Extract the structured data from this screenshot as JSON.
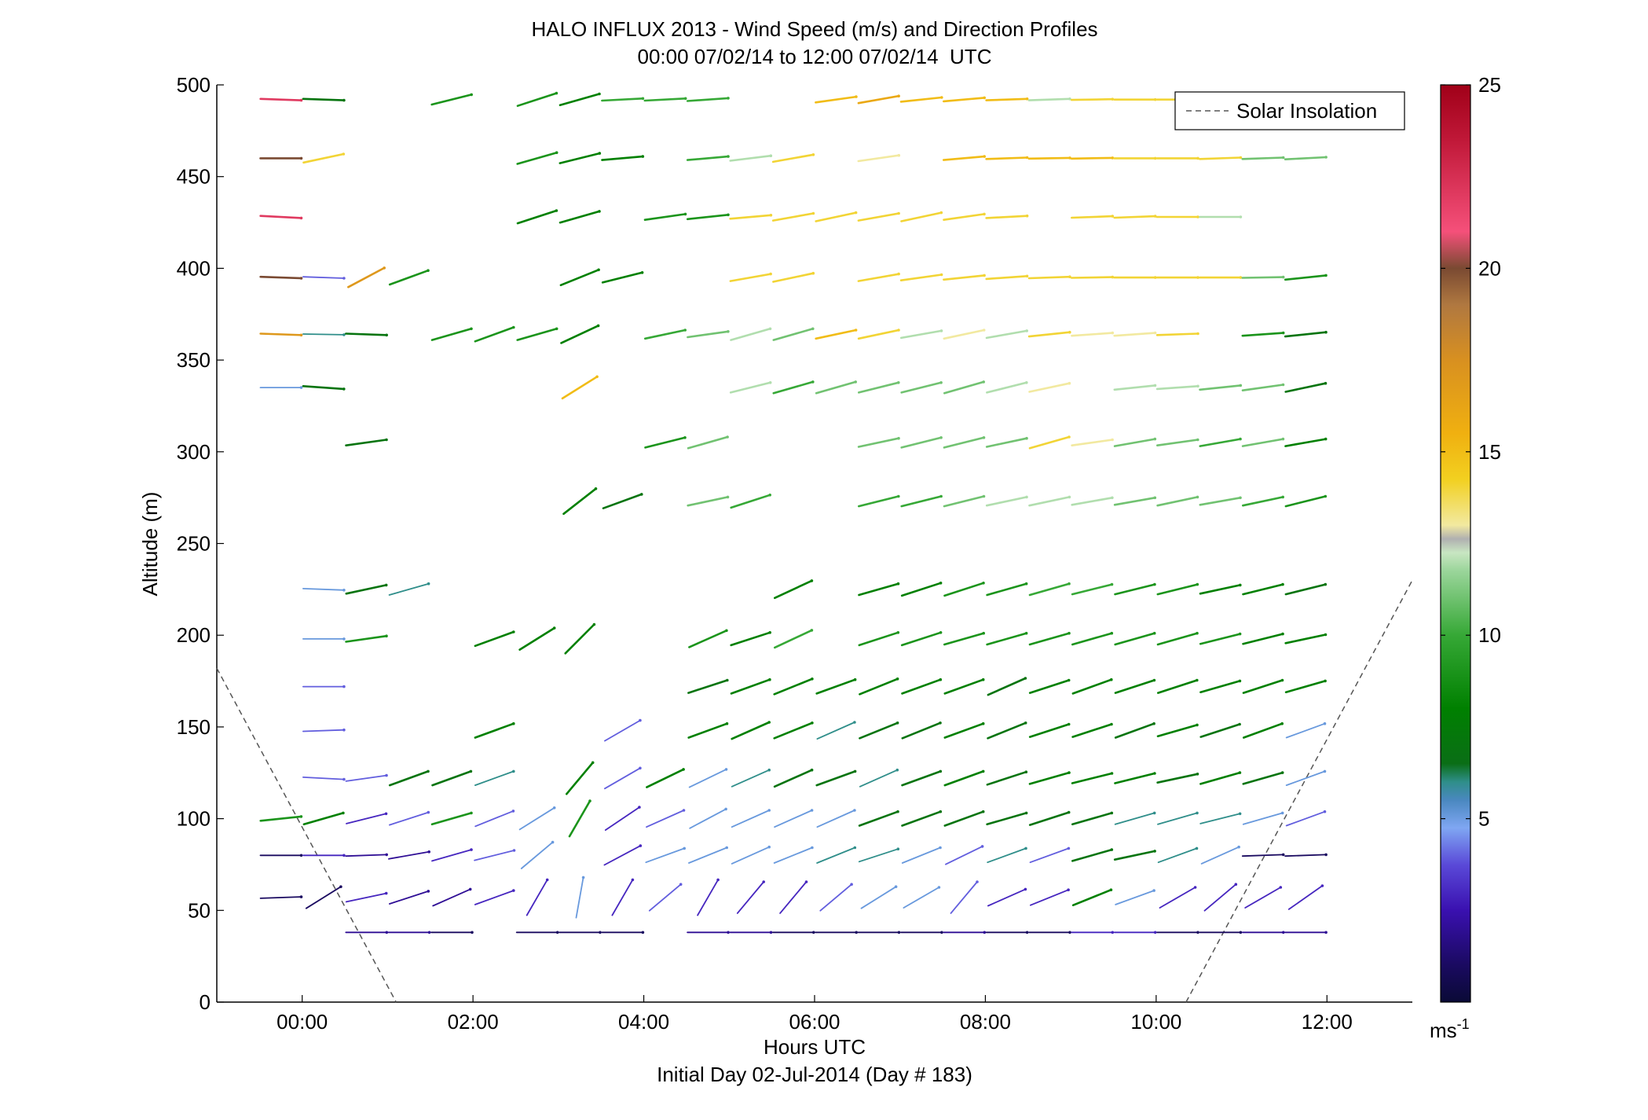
{
  "chart_data": {
    "type": "quiver",
    "title": "HALO INFLUX 2013 - Wind Speed (m/s) and Direction Profiles",
    "subtitle": "00:00 07/02/14 to 12:00 07/02/14  UTC",
    "xlabel": "Hours UTC",
    "xlabel2": "Initial Day 02-Jul-2014 (Day # 183)",
    "ylabel": "Altitude (m)",
    "xlim": [
      -1,
      13
    ],
    "ylim": [
      0,
      500
    ],
    "xticks": [
      0,
      2,
      4,
      6,
      8,
      10,
      12
    ],
    "xtick_labels": [
      "00:00",
      "02:00",
      "04:00",
      "06:00",
      "08:00",
      "10:00",
      "12:00"
    ],
    "yticks": [
      0,
      50,
      100,
      150,
      200,
      250,
      300,
      350,
      400,
      450,
      500
    ],
    "ytick_labels": [
      "0",
      "50",
      "100",
      "150",
      "200",
      "250",
      "300",
      "350",
      "400",
      "450",
      "500"
    ],
    "legend": {
      "label": "Solar Insolation",
      "placement": "top-right"
    },
    "solar_insolation": [
      {
        "x": [
          -1.0,
          1.1
        ],
        "y": [
          182,
          0
        ]
      },
      {
        "x": [
          10.35,
          13.0
        ],
        "y": [
          0,
          230
        ]
      }
    ],
    "colorbar": {
      "ticks": [
        5,
        10,
        15,
        20,
        25
      ],
      "tick_labels": [
        "5",
        "10",
        "15",
        "20",
        "25"
      ],
      "range": [
        0,
        25
      ],
      "unit_label": "ms",
      "unit_exp": "-1"
    },
    "profile_times": [
      -0.25,
      0.25,
      0.75,
      1.25,
      1.75,
      2.25,
      2.75,
      3.25,
      3.75,
      4.25,
      4.75,
      5.25,
      5.75,
      6.25,
      6.75,
      7.25,
      7.75,
      8.25,
      8.75,
      9.25,
      9.75,
      10.25,
      10.75,
      11.25,
      11.75
    ],
    "wind_barbs": [
      {
        "alt": 492,
        "speed": [
          22,
          7,
          0,
          0,
          9,
          0,
          9,
          8,
          10,
          10,
          10,
          0,
          0,
          15,
          16,
          15,
          15,
          15,
          12,
          14,
          14,
          14,
          14,
          15,
          0
        ],
        "dir": [
          -2,
          -2,
          0,
          0,
          14,
          0,
          18,
          16,
          3,
          3,
          4,
          0,
          0,
          8,
          10,
          6,
          5,
          2,
          2,
          1,
          0,
          0,
          0,
          0,
          0
        ]
      },
      {
        "alt": 460,
        "speed": [
          20,
          14,
          0,
          0,
          0,
          0,
          9,
          8,
          8,
          0,
          10,
          12,
          14,
          0,
          13,
          0,
          15,
          15,
          15,
          15,
          14,
          14,
          14,
          11,
          11
        ],
        "dir": [
          0,
          12,
          0,
          0,
          0,
          0,
          16,
          14,
          5,
          0,
          5,
          7,
          10,
          0,
          8,
          0,
          5,
          2,
          1,
          1,
          0,
          0,
          2,
          2,
          3
        ]
      },
      {
        "alt": 428,
        "speed": [
          22,
          0,
          0,
          0,
          0,
          0,
          8,
          8,
          0,
          9,
          9,
          14,
          14,
          14,
          14,
          14,
          14,
          14,
          0,
          14,
          14,
          14,
          12,
          0,
          0
        ],
        "dir": [
          -3,
          0,
          0,
          0,
          0,
          0,
          18,
          16,
          0,
          8,
          6,
          5,
          10,
          12,
          10,
          12,
          8,
          3,
          0,
          2,
          2,
          0,
          0,
          0,
          0
        ]
      },
      {
        "alt": 395,
        "speed": [
          20,
          4,
          17,
          9,
          0,
          0,
          0,
          8,
          8,
          0,
          0,
          14,
          14,
          0,
          14,
          14,
          14,
          14,
          14,
          14,
          14,
          14,
          14,
          11,
          9
        ],
        "dir": [
          -2,
          -2,
          28,
          20,
          0,
          0,
          0,
          22,
          14,
          0,
          0,
          10,
          12,
          0,
          10,
          8,
          6,
          4,
          2,
          1,
          0,
          0,
          0,
          1,
          6
        ]
      },
      {
        "alt": 364,
        "speed": [
          17,
          6,
          7,
          0,
          9,
          9,
          9,
          8,
          0,
          10,
          11,
          12,
          11,
          15,
          14,
          12,
          13,
          12,
          14,
          13,
          13,
          14,
          0,
          9,
          7
        ],
        "dir": [
          -2,
          -1,
          -2,
          0,
          16,
          20,
          16,
          25,
          0,
          12,
          8,
          16,
          16,
          12,
          12,
          10,
          12,
          10,
          6,
          4,
          4,
          2,
          0,
          4,
          6
        ]
      },
      {
        "alt": 335,
        "speed": [
          5,
          7,
          0,
          0,
          0,
          0,
          0,
          15,
          0,
          0,
          0,
          12,
          10,
          11,
          11,
          11,
          11,
          12,
          13,
          0,
          12,
          12,
          11,
          11,
          7
        ],
        "dir": [
          0,
          -4,
          0,
          0,
          0,
          0,
          0,
          32,
          0,
          0,
          0,
          14,
          16,
          16,
          14,
          14,
          16,
          14,
          12,
          0,
          6,
          4,
          6,
          8,
          12
        ]
      },
      {
        "alt": 305,
        "speed": [
          0,
          0,
          7,
          0,
          0,
          0,
          0,
          0,
          0,
          9,
          11,
          0,
          0,
          0,
          11,
          11,
          11,
          11,
          14,
          13,
          11,
          11,
          10,
          11,
          8
        ],
        "dir": [
          0,
          0,
          8,
          0,
          0,
          0,
          0,
          0,
          0,
          14,
          16,
          0,
          0,
          0,
          12,
          14,
          14,
          12,
          16,
          8,
          10,
          8,
          10,
          10,
          10
        ]
      },
      {
        "alt": 273,
        "speed": [
          0,
          0,
          0,
          0,
          0,
          0,
          0,
          8,
          7,
          0,
          11,
          10,
          0,
          0,
          10,
          10,
          11,
          12,
          12,
          12,
          11,
          11,
          11,
          10,
          9
        ],
        "dir": [
          0,
          0,
          0,
          0,
          0,
          0,
          0,
          38,
          20,
          0,
          12,
          18,
          0,
          0,
          14,
          14,
          14,
          12,
          12,
          10,
          10,
          12,
          10,
          12,
          14
        ]
      },
      {
        "alt": 225,
        "speed": [
          0,
          5,
          7,
          6,
          0,
          0,
          0,
          0,
          0,
          0,
          0,
          0,
          8,
          0,
          8,
          8,
          9,
          9,
          10,
          10,
          9,
          9,
          8,
          8,
          7
        ],
        "dir": [
          0,
          -2,
          12,
          16,
          0,
          0,
          0,
          0,
          0,
          0,
          0,
          0,
          25,
          0,
          16,
          18,
          18,
          16,
          16,
          14,
          14,
          14,
          12,
          14,
          14
        ]
      },
      {
        "alt": 198,
        "speed": [
          0,
          5,
          9,
          0,
          0,
          8,
          8,
          8,
          0,
          0,
          9,
          8,
          10,
          0,
          9,
          9,
          9,
          9,
          9,
          9,
          9,
          9,
          9,
          8,
          8
        ],
        "dir": [
          0,
          0,
          8,
          0,
          0,
          20,
          32,
          45,
          0,
          0,
          24,
          18,
          25,
          0,
          18,
          18,
          16,
          16,
          16,
          16,
          16,
          16,
          14,
          14,
          12
        ]
      },
      {
        "alt": 172,
        "speed": [
          0,
          4,
          0,
          0,
          0,
          0,
          0,
          0,
          0,
          0,
          7,
          8,
          8,
          8,
          8,
          8,
          8,
          7,
          8,
          8,
          8,
          8,
          8,
          8,
          8
        ],
        "dir": [
          0,
          0,
          0,
          0,
          0,
          0,
          0,
          0,
          0,
          0,
          18,
          20,
          22,
          20,
          22,
          20,
          20,
          24,
          18,
          20,
          18,
          18,
          16,
          18,
          16
        ]
      },
      {
        "alt": 148,
        "speed": [
          0,
          4,
          0,
          0,
          0,
          8,
          0,
          0,
          4,
          0,
          8,
          8,
          8,
          6,
          7,
          7,
          8,
          7,
          8,
          8,
          7,
          8,
          7,
          8,
          5
        ],
        "dir": [
          0,
          2,
          0,
          0,
          0,
          20,
          0,
          0,
          30,
          0,
          20,
          24,
          22,
          24,
          22,
          22,
          20,
          22,
          18,
          18,
          20,
          16,
          18,
          20,
          20
        ]
      },
      {
        "alt": 122,
        "speed": [
          0,
          4,
          4,
          7,
          7,
          6,
          0,
          8,
          4,
          8,
          5,
          6,
          7,
          7,
          6,
          7,
          8,
          7,
          8,
          8,
          8,
          7,
          8,
          7,
          5
        ],
        "dir": [
          0,
          -3,
          8,
          20,
          20,
          20,
          0,
          50,
          30,
          26,
          26,
          24,
          24,
          20,
          24,
          20,
          20,
          18,
          16,
          14,
          14,
          12,
          16,
          16,
          20
        ]
      },
      {
        "alt": 100,
        "speed": [
          9,
          8,
          3,
          4,
          9,
          4,
          5,
          9,
          3,
          4,
          5,
          5,
          5,
          5,
          7,
          7,
          7,
          7,
          7,
          7,
          6,
          6,
          6,
          5,
          4
        ],
        "dir": [
          6,
          16,
          14,
          18,
          16,
          22,
          32,
          60,
          34,
          24,
          28,
          24,
          24,
          24,
          20,
          20,
          20,
          16,
          18,
          16,
          16,
          16,
          14,
          16,
          20
        ]
      },
      {
        "alt": 80,
        "speed": [
          1,
          3,
          2,
          2,
          3,
          4,
          5,
          0,
          3,
          5,
          5,
          5,
          5,
          6,
          6,
          5,
          4,
          6,
          4,
          7,
          7,
          6,
          5,
          1,
          1
        ],
        "dir": [
          0,
          0,
          2,
          10,
          16,
          14,
          40,
          0,
          28,
          20,
          22,
          24,
          22,
          22,
          18,
          22,
          26,
          20,
          20,
          16,
          12,
          20,
          24,
          2,
          2
        ]
      },
      {
        "alt": 57,
        "speed": [
          1,
          1,
          3,
          2,
          2,
          3,
          3,
          5,
          3,
          4,
          3,
          3,
          3,
          4,
          5,
          5,
          4,
          3,
          3,
          8,
          5,
          3,
          3,
          3,
          3
        ],
        "dir": [
          2,
          32,
          12,
          18,
          24,
          20,
          60,
          80,
          60,
          40,
          60,
          50,
          50,
          40,
          32,
          30,
          50,
          24,
          22,
          22,
          20,
          30,
          40,
          30,
          35
        ]
      },
      {
        "alt": 38,
        "speed": [
          0,
          0,
          2,
          2,
          1,
          0,
          1,
          1,
          1,
          0,
          2,
          2,
          1,
          1,
          1,
          1,
          2,
          1,
          1,
          3,
          3,
          1,
          1,
          2,
          2
        ],
        "dir": [
          0,
          0,
          0,
          0,
          0,
          0,
          0,
          0,
          0,
          0,
          0,
          0,
          0,
          0,
          0,
          0,
          0,
          0,
          0,
          0,
          0,
          0,
          0,
          0,
          0
        ]
      }
    ]
  }
}
